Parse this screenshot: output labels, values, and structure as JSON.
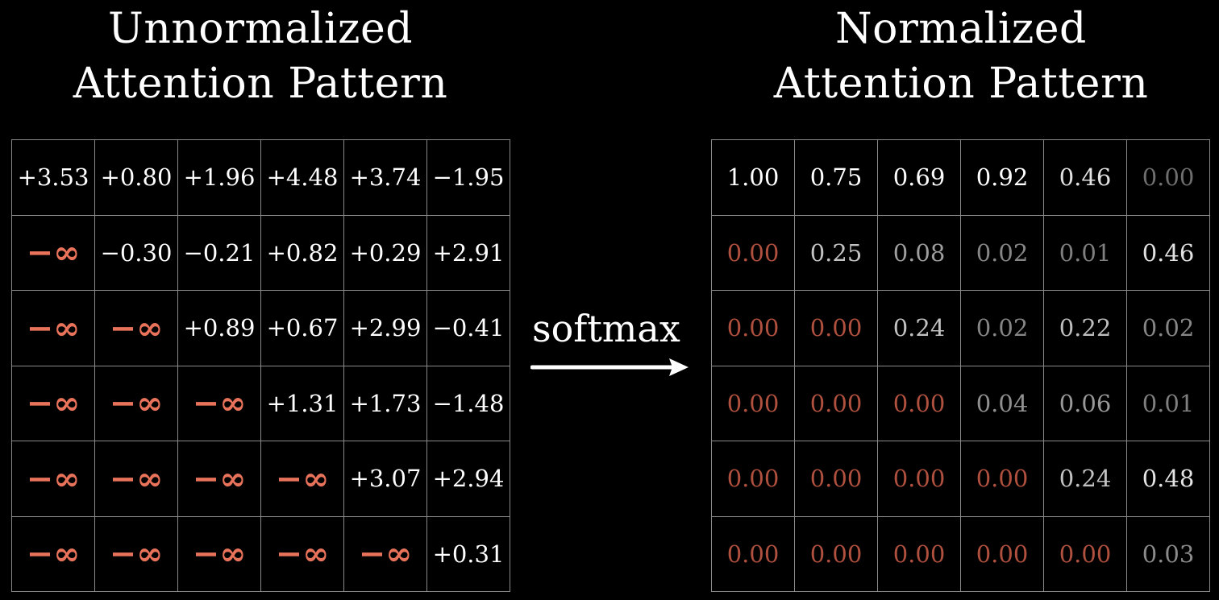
{
  "left_title": [
    "Unnormalized",
    "Attention Pattern"
  ],
  "right_title": [
    "Normalized",
    "Attention Pattern"
  ],
  "arrow_label": "softmax",
  "colors": {
    "background": "#000000",
    "text": "#ffffff",
    "grid": "#8a8a8a",
    "neg_inf": "#e8735a",
    "masked_zero": "#b0503e"
  },
  "unnormalized": [
    [
      "+3.53",
      "+0.80",
      "+1.96",
      "+4.48",
      "+3.74",
      "−1.95"
    ],
    [
      "−∞",
      "−0.30",
      "−0.21",
      "+0.82",
      "+0.29",
      "+2.91"
    ],
    [
      "−∞",
      "−∞",
      "+0.89",
      "+0.67",
      "+2.99",
      "−0.41"
    ],
    [
      "−∞",
      "−∞",
      "−∞",
      "+1.31",
      "+1.73",
      "−1.48"
    ],
    [
      "−∞",
      "−∞",
      "−∞",
      "−∞",
      "+3.07",
      "+2.94"
    ],
    [
      "−∞",
      "−∞",
      "−∞",
      "−∞",
      "−∞",
      "+0.31"
    ]
  ],
  "normalized": [
    [
      "1.00",
      "0.75",
      "0.69",
      "0.92",
      "0.46",
      "0.00"
    ],
    [
      "0.00",
      "0.25",
      "0.08",
      "0.02",
      "0.01",
      "0.46"
    ],
    [
      "0.00",
      "0.00",
      "0.24",
      "0.02",
      "0.22",
      "0.02"
    ],
    [
      "0.00",
      "0.00",
      "0.00",
      "0.04",
      "0.06",
      "0.01"
    ],
    [
      "0.00",
      "0.00",
      "0.00",
      "0.00",
      "0.24",
      "0.48"
    ],
    [
      "0.00",
      "0.00",
      "0.00",
      "0.00",
      "0.00",
      "0.03"
    ]
  ]
}
